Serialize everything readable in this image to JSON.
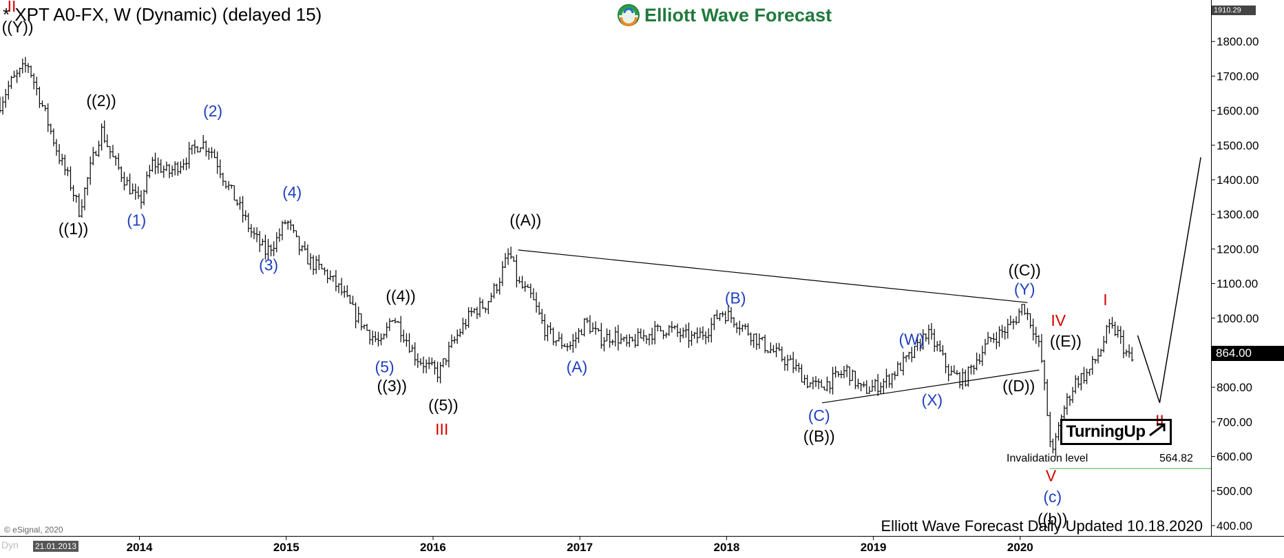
{
  "header": {
    "title": "* XPT A0-FX, W (Dynamic) (delayed 15)",
    "brand": "Elliott Wave Forecast"
  },
  "footer": {
    "copyright": "© eSignal, 2020",
    "updated": "Elliott Wave Forecast Daily Updated 10.18.2020",
    "start_date": "21.01.2013",
    "dyn_label": "Dyn"
  },
  "badge": {
    "label": "TurningUp"
  },
  "price": {
    "current_label": "864.00",
    "top_label": "1910.29",
    "invalidation_label": "Invalidation level",
    "invalidation_value": "564.82"
  },
  "colors": {
    "brand_green": "#1f7a3c",
    "label_red": "#d40000",
    "label_blue": "#1f3fbf",
    "invalidation_green": "#5cb85c"
  },
  "chart_data": {
    "type": "line",
    "title": "* XPT A0-FX, W (Dynamic) (delayed 15)",
    "xlabel": "",
    "ylabel": "",
    "x_ticks": [
      "2014",
      "2015",
      "2016",
      "2017",
      "2018",
      "2019",
      "2020"
    ],
    "y_ticks": [
      400,
      500,
      600,
      700,
      800,
      900,
      1000,
      1100,
      1200,
      1300,
      1400,
      1500,
      1600,
      1700,
      1800
    ],
    "y_tick_labels": [
      "400.00",
      "500.00",
      "600.00",
      "700.00",
      "800.00",
      "900.00",
      "1000.00",
      "1100.00",
      "1200.00",
      "1300.00",
      "1400.00",
      "1500.00",
      "1600.00",
      "1700.00",
      "1800.00"
    ],
    "ylim": [
      370,
      1920
    ],
    "xlim": [
      2013.05,
      2021.3
    ],
    "grid": false,
    "series": [
      {
        "kind": "ohlc-bars",
        "x": [
          2013.05,
          2013.12,
          2013.24,
          2013.35,
          2013.45,
          2013.52,
          2013.59,
          2013.67,
          2013.74,
          2013.82,
          2013.9,
          2014.0,
          2014.09,
          2014.2,
          2014.31,
          2014.42,
          2014.5,
          2014.58,
          2014.67,
          2014.76,
          2014.86,
          2014.94,
          2015.0,
          2015.09,
          2015.17,
          2015.27,
          2015.37,
          2015.47,
          2015.56,
          2015.65,
          2015.72,
          2015.78,
          2015.88,
          2015.96,
          2016.04,
          2016.1,
          2016.18,
          2016.27,
          2016.36,
          2016.44,
          2016.52,
          2016.58,
          2016.67,
          2016.77,
          2016.86,
          2016.94,
          2017.04,
          2017.14,
          2017.24,
          2017.32,
          2017.4,
          2017.5,
          2017.6,
          2017.7,
          2017.78,
          2017.88,
          2017.96,
          2018.04,
          2018.15,
          2018.26,
          2018.36,
          2018.46,
          2018.55,
          2018.62,
          2018.72,
          2018.82,
          2018.92,
          2019.0,
          2019.09,
          2019.18,
          2019.28,
          2019.36,
          2019.44,
          2019.52,
          2019.62,
          2019.7,
          2019.8,
          2019.88,
          2019.96,
          2020.02,
          2020.09,
          2020.14,
          2020.19,
          2020.22,
          2020.28,
          2020.38,
          2020.46,
          2020.54,
          2020.6,
          2020.66,
          2020.72,
          2020.78
        ],
        "y": [
          1620,
          1680,
          1735,
          1600,
          1470,
          1400,
          1310,
          1440,
          1545,
          1460,
          1400,
          1330,
          1450,
          1420,
          1460,
          1510,
          1480,
          1400,
          1330,
          1250,
          1190,
          1230,
          1285,
          1200,
          1160,
          1130,
          1080,
          1010,
          960,
          920,
          1010,
          970,
          890,
          860,
          840,
          900,
          960,
          1020,
          1040,
          1100,
          1190,
          1100,
          1060,
          960,
          930,
          920,
          990,
          940,
          950,
          920,
          940,
          960,
          970,
          950,
          940,
          970,
          1020,
          1000,
          960,
          920,
          890,
          860,
          815,
          800,
          820,
          850,
          790,
          800,
          820,
          860,
          900,
          960,
          910,
          840,
          820,
          880,
          940,
          960,
          990,
          1040,
          970,
          900,
          700,
          600,
          720,
          820,
          840,
          900,
          970,
          960,
          900,
          864
        ]
      },
      {
        "kind": "projection",
        "x": [
          2020.8,
          2020.95,
          2021.23
        ],
        "y": [
          950,
          755,
          1465
        ]
      },
      {
        "kind": "trendline",
        "x": [
          2016.58,
          2020.05
        ],
        "y": [
          1197,
          1045
        ]
      },
      {
        "kind": "trendline",
        "x": [
          2018.65,
          2020.13
        ],
        "y": [
          755,
          850
        ]
      },
      {
        "kind": "invalidation",
        "x": [
          2020.2,
          2021.3
        ],
        "y": [
          564.82,
          564.82
        ]
      }
    ],
    "annotations": [
      {
        "text": "II",
        "color": "red",
        "x": 2013.13,
        "y": 1898
      },
      {
        "text": "((Y))",
        "color": "black",
        "x": 2013.17,
        "y": 1838
      },
      {
        "text": "((1))",
        "color": "black",
        "x": 2013.55,
        "y": 1255
      },
      {
        "text": "((2))",
        "color": "black",
        "x": 2013.74,
        "y": 1625
      },
      {
        "text": "(1)",
        "color": "blue",
        "x": 2013.98,
        "y": 1280
      },
      {
        "text": "(2)",
        "color": "blue",
        "x": 2014.5,
        "y": 1595
      },
      {
        "text": "(3)",
        "color": "blue",
        "x": 2014.88,
        "y": 1150
      },
      {
        "text": "(4)",
        "color": "blue",
        "x": 2015.04,
        "y": 1360
      },
      {
        "text": "((4))",
        "color": "black",
        "x": 2015.78,
        "y": 1060
      },
      {
        "text": "(5)",
        "color": "blue",
        "x": 2015.67,
        "y": 855
      },
      {
        "text": "((3))",
        "color": "black",
        "x": 2015.72,
        "y": 800
      },
      {
        "text": "((5))",
        "color": "black",
        "x": 2016.07,
        "y": 745
      },
      {
        "text": "III",
        "color": "red",
        "x": 2016.06,
        "y": 675
      },
      {
        "text": "((A))",
        "color": "black",
        "x": 2016.63,
        "y": 1280
      },
      {
        "text": "(A)",
        "color": "blue",
        "x": 2016.98,
        "y": 855
      },
      {
        "text": "(B)",
        "color": "blue",
        "x": 2018.06,
        "y": 1055
      },
      {
        "text": "(C)",
        "color": "blue",
        "x": 2018.63,
        "y": 715
      },
      {
        "text": "((B))",
        "color": "black",
        "x": 2018.63,
        "y": 655
      },
      {
        "text": "(W)",
        "color": "blue",
        "x": 2019.26,
        "y": 935
      },
      {
        "text": "(X)",
        "color": "blue",
        "x": 2019.4,
        "y": 760
      },
      {
        "text": "((C))",
        "color": "black",
        "x": 2020.03,
        "y": 1135
      },
      {
        "text": "(Y)",
        "color": "blue",
        "x": 2020.03,
        "y": 1080
      },
      {
        "text": "IV",
        "color": "red",
        "x": 2020.26,
        "y": 990
      },
      {
        "text": "((E))",
        "color": "black",
        "x": 2020.31,
        "y": 930
      },
      {
        "text": "((D))",
        "color": "black",
        "x": 2019.99,
        "y": 800
      },
      {
        "text": "V",
        "color": "red",
        "x": 2020.21,
        "y": 540
      },
      {
        "text": "(c)",
        "color": "blue",
        "x": 2020.22,
        "y": 480
      },
      {
        "text": "((b))",
        "color": "black",
        "x": 2020.22,
        "y": 415
      },
      {
        "text": "I",
        "color": "red",
        "x": 2020.58,
        "y": 1050
      },
      {
        "text": "II",
        "color": "red",
        "x": 2020.95,
        "y": 700
      }
    ]
  }
}
